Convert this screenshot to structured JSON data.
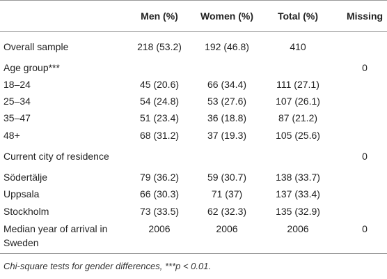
{
  "table": {
    "columns": [
      "Men (%)",
      "Women (%)",
      "Total (%)",
      "Missing"
    ],
    "rows": [
      {
        "label": "Overall sample",
        "men": "218 (53.2)",
        "women": "192 (46.8)",
        "total": "410"
      },
      {
        "label": "Age group***",
        "missing": "0"
      },
      {
        "label": "18–24",
        "men": "45 (20.6)",
        "women": "66 (34.4)",
        "total": "111 (27.1)"
      },
      {
        "label": "25–34",
        "men": "54 (24.8)",
        "women": "53 (27.6)",
        "total": "107 (26.1)"
      },
      {
        "label": "35–47",
        "men": "51 (23.4)",
        "women": "36 (18.8)",
        "total": "87 (21.2)"
      },
      {
        "label": "48+",
        "men": "68 (31.2)",
        "women": "37 (19.3)",
        "total": "105 (25.6)"
      },
      {
        "label": "Current city of residence",
        "missing": "0"
      },
      {
        "label": "Södertälje",
        "men": "79 (36.2)",
        "women": "59 (30.7)",
        "total": "138 (33.7)"
      },
      {
        "label": "Uppsala",
        "men": "66 (30.3)",
        "women": "71 (37)",
        "total": "137 (33.4)"
      },
      {
        "label": "Stockholm",
        "men": "73 (33.5)",
        "women": "62 (32.3)",
        "total": "135 (32.9)"
      },
      {
        "label": "Median year of arrival in Sweden",
        "men": "2006",
        "women": "2006",
        "total": "2006",
        "missing": "0"
      }
    ],
    "footnote": "Chi-square tests for gender differences, ***p < 0.01."
  }
}
